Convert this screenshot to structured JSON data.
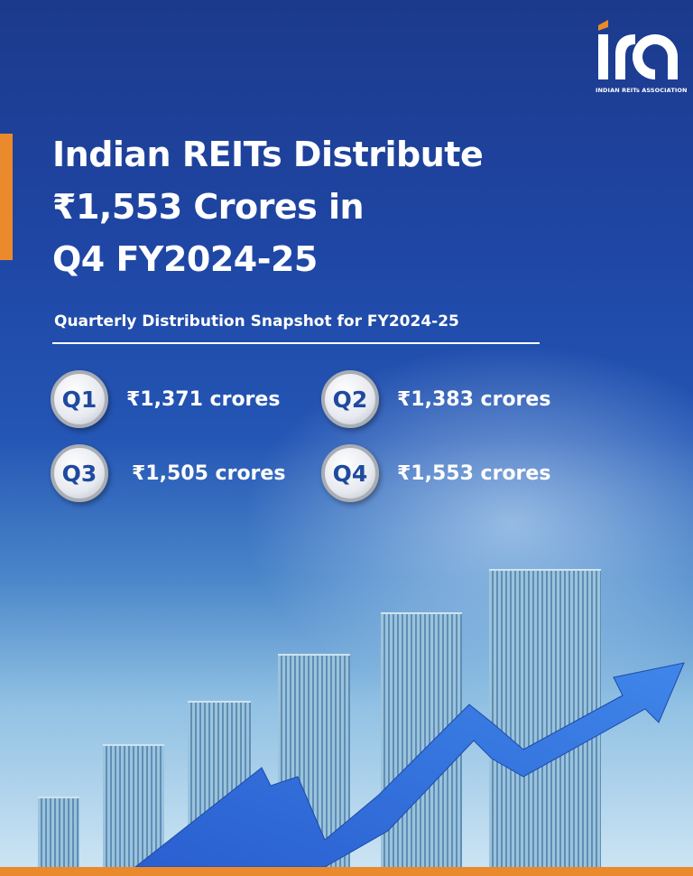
{
  "logo": {
    "text": "ira",
    "subtitle": "INDIAN REITs ASSOCIATION"
  },
  "title": {
    "line1": "Indian REITs Distribute",
    "line2": "₹1,553 Crores in",
    "line3": "Q4 FY2024-25"
  },
  "subtitle": "Quarterly Distribution Snapshot for FY2024-25",
  "quarters": [
    {
      "label": "Q1",
      "amount": "₹1,371 crores"
    },
    {
      "label": "Q2",
      "amount": "₹1,383 crores"
    },
    {
      "label": "Q3",
      "amount": "₹1,505 crores"
    },
    {
      "label": "Q4",
      "amount": "₹1,553 crores"
    }
  ],
  "colors": {
    "accent": "#ea8a2c",
    "background": "#1f47a6",
    "badge_text": "#1f4aa0"
  }
}
